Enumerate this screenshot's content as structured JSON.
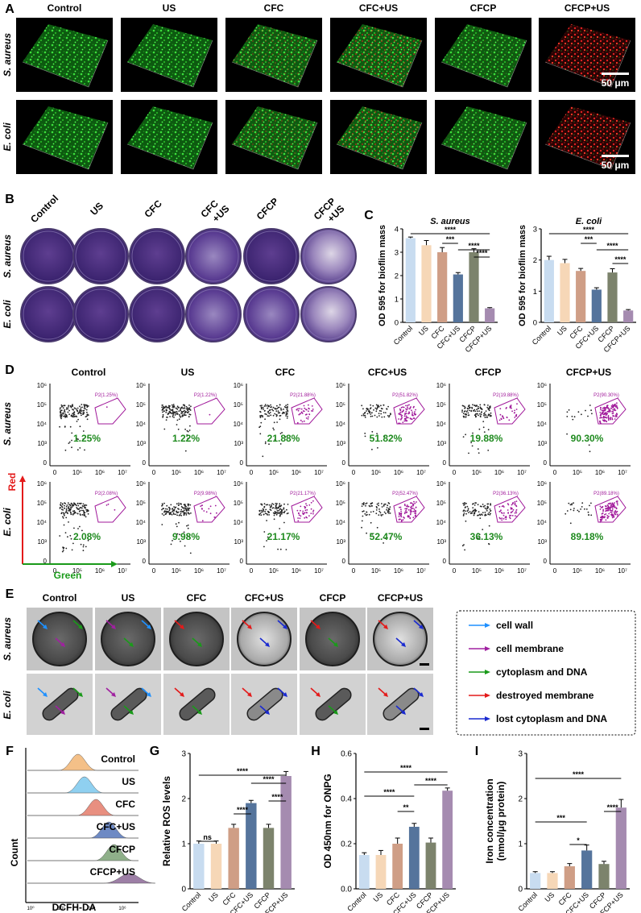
{
  "groups": [
    "Control",
    "US",
    "CFC",
    "CFC+US",
    "CFCP",
    "CFCP+US"
  ],
  "groups_b": [
    [
      "Control"
    ],
    [
      "US"
    ],
    [
      "CFC"
    ],
    [
      "CFC",
      "+US"
    ],
    [
      "CFCP"
    ],
    [
      "CFCP",
      "+US"
    ]
  ],
  "species": {
    "sa": "S. aureus",
    "ec": "E. coli"
  },
  "panel_labels": {
    "a": "A",
    "b": "B",
    "c": "C",
    "d": "D",
    "e": "E",
    "f": "F",
    "g": "G",
    "h": "H",
    "i": "I"
  },
  "scalebar": "50 μm",
  "colors": {
    "green": "#1f9a1f",
    "red": "#d41818",
    "magenta": "#9a1a9a",
    "pct_green": "#1e8a1e"
  },
  "flow": {
    "x_axis_label": "Green",
    "y_axis_label": "Red",
    "x_ticks": [
      "0",
      "10⁵",
      "10⁶",
      "10⁷"
    ],
    "y_ticks": [
      "0",
      "10³",
      "10⁴",
      "10⁵",
      "10⁶"
    ],
    "sa_gate": [
      "P2(1.25%)",
      "P2(1.22%)",
      "P2(21.88%)",
      "P2(51.82%)",
      "P2(19.88%)",
      "P2(90.30%)"
    ],
    "sa_pct": [
      "1.25%",
      "1.22%",
      "21.88%",
      "51.82%",
      "19.88%",
      "90.30%"
    ],
    "ec_gate": [
      "P2(2.08%)",
      "P2(9.98%)",
      "P2(21.17%)",
      "P2(52.47%)",
      "P2(36.13%)",
      "P2(89.18%)"
    ],
    "ec_pct": [
      "2.08%",
      "9.98%",
      "21.17%",
      "52.47%",
      "36.13%",
      "89.18%"
    ]
  },
  "tem_legend": [
    {
      "label": "cell wall",
      "color": "#1e90ff"
    },
    {
      "label": "cell membrane",
      "color": "#a020a0"
    },
    {
      "label": "cytoplasm and DNA",
      "color": "#1a9a1a"
    },
    {
      "label": "destroyed membrane",
      "color": "#e31a1a"
    },
    {
      "label": "lost cytoplasm and DNA",
      "color": "#1a2ad0"
    }
  ],
  "panel_f": {
    "labels": [
      "Control",
      "US",
      "CFC",
      "CFC+US",
      "CFCP",
      "CFCP+US"
    ],
    "colors": [
      "#f4c088",
      "#8fd0f0",
      "#e88f80",
      "#6e8ac4",
      "#8fb08a",
      "#9d7fa6"
    ],
    "y_label": "Count",
    "x_label": "DCFH-DA",
    "x_ticks": [
      "10⁰",
      "10²",
      "10⁴",
      "10⁶"
    ]
  },
  "bar_colors": [
    "#c8dcf0",
    "#f6d7b7",
    "#cf9e86",
    "#55749c",
    "#7c836c",
    "#a58bb0"
  ],
  "chart_data": [
    {
      "type": "bar",
      "panel": "C",
      "title": "S. aureus",
      "ylabel": "OD 595 for bioflim mass",
      "categories": [
        "Control",
        "US",
        "CFC",
        "CFC+US",
        "CFCP",
        "CFCP+US"
      ],
      "values": [
        3.6,
        3.3,
        3.0,
        2.05,
        3.0,
        0.6
      ],
      "errors": [
        0.05,
        0.2,
        0.2,
        0.08,
        0.15,
        0.03
      ],
      "ylim": [
        0,
        4
      ],
      "yticks": [
        "0",
        "1",
        "2",
        "3",
        "4"
      ],
      "significance": [
        {
          "from": 0,
          "to": 5,
          "label": "****"
        },
        {
          "from": 2,
          "to": 3,
          "label": "***"
        },
        {
          "from": 3,
          "to": 5,
          "label": "****"
        },
        {
          "from": 4,
          "to": 5,
          "label": "****"
        }
      ]
    },
    {
      "type": "bar",
      "panel": "C",
      "title": "E. coli",
      "ylabel": "OD 595 for bioflim mass",
      "categories": [
        "Control",
        "US",
        "CFC",
        "CFC+US",
        "CFCP",
        "CFCP+US"
      ],
      "values": [
        2.0,
        1.9,
        1.65,
        1.05,
        1.6,
        0.38
      ],
      "errors": [
        0.12,
        0.12,
        0.08,
        0.06,
        0.12,
        0.03
      ],
      "ylim": [
        0,
        3
      ],
      "yticks": [
        "0",
        "1",
        "2",
        "3"
      ],
      "significance": [
        {
          "from": 0,
          "to": 5,
          "label": "****"
        },
        {
          "from": 2,
          "to": 3,
          "label": "***"
        },
        {
          "from": 3,
          "to": 5,
          "label": "****"
        },
        {
          "from": 4,
          "to": 5,
          "label": "****"
        }
      ]
    },
    {
      "type": "bar",
      "panel": "G",
      "title": "",
      "ylabel": "Relative ROS levels",
      "categories": [
        "Control",
        "US",
        "CFC",
        "CFC+US",
        "CFCP",
        "CFCP+US"
      ],
      "values": [
        1.0,
        1.0,
        1.35,
        1.9,
        1.35,
        2.5
      ],
      "errors": [
        0.06,
        0.06,
        0.08,
        0.06,
        0.08,
        0.1
      ],
      "ylim": [
        0,
        3
      ],
      "yticks": [
        "0",
        "1",
        "2",
        "3"
      ],
      "significance": [
        {
          "from": 0,
          "to": 1,
          "label": "ns"
        },
        {
          "from": 2,
          "to": 3,
          "label": "****"
        },
        {
          "from": 0,
          "to": 5,
          "label": "****"
        },
        {
          "from": 3,
          "to": 5,
          "label": "****"
        },
        {
          "from": 4,
          "to": 5,
          "label": "****"
        }
      ]
    },
    {
      "type": "bar",
      "panel": "H",
      "title": "",
      "ylabel": "OD 450nm for ONPG",
      "categories": [
        "Control",
        "US",
        "CFC",
        "CFC+US",
        "CFCP",
        "CFCP+US"
      ],
      "values": [
        0.15,
        0.15,
        0.2,
        0.275,
        0.205,
        0.435
      ],
      "errors": [
        0.01,
        0.02,
        0.025,
        0.015,
        0.02,
        0.012
      ],
      "ylim": [
        0,
        0.6
      ],
      "yticks": [
        "0.0",
        "0.2",
        "0.4",
        "0.6"
      ],
      "significance": [
        {
          "from": 0,
          "to": 5,
          "label": "****"
        },
        {
          "from": 0,
          "to": 3,
          "label": "****"
        },
        {
          "from": 3,
          "to": 5,
          "label": "****"
        },
        {
          "from": 2,
          "to": 3,
          "label": "**"
        }
      ]
    },
    {
      "type": "bar",
      "panel": "I",
      "title": "",
      "ylabel": "Iron concentration (nmol/μg protein)",
      "ylabel_lines": [
        "Iron concentration",
        "(nmol/μg protein)"
      ],
      "categories": [
        "Control",
        "US",
        "CFC",
        "CFC+US",
        "CFCP",
        "CFCP+US"
      ],
      "values": [
        0.35,
        0.35,
        0.5,
        0.85,
        0.55,
        1.8
      ],
      "errors": [
        0.03,
        0.03,
        0.06,
        0.12,
        0.06,
        0.18
      ],
      "ylim": [
        0,
        3
      ],
      "yticks": [
        "0",
        "1",
        "2",
        "3"
      ],
      "significance": [
        {
          "from": 0,
          "to": 5,
          "label": "****"
        },
        {
          "from": 0,
          "to": 3,
          "label": "***"
        },
        {
          "from": 2,
          "to": 3,
          "label": "*"
        },
        {
          "from": 4,
          "to": 5,
          "label": "****"
        }
      ]
    }
  ]
}
